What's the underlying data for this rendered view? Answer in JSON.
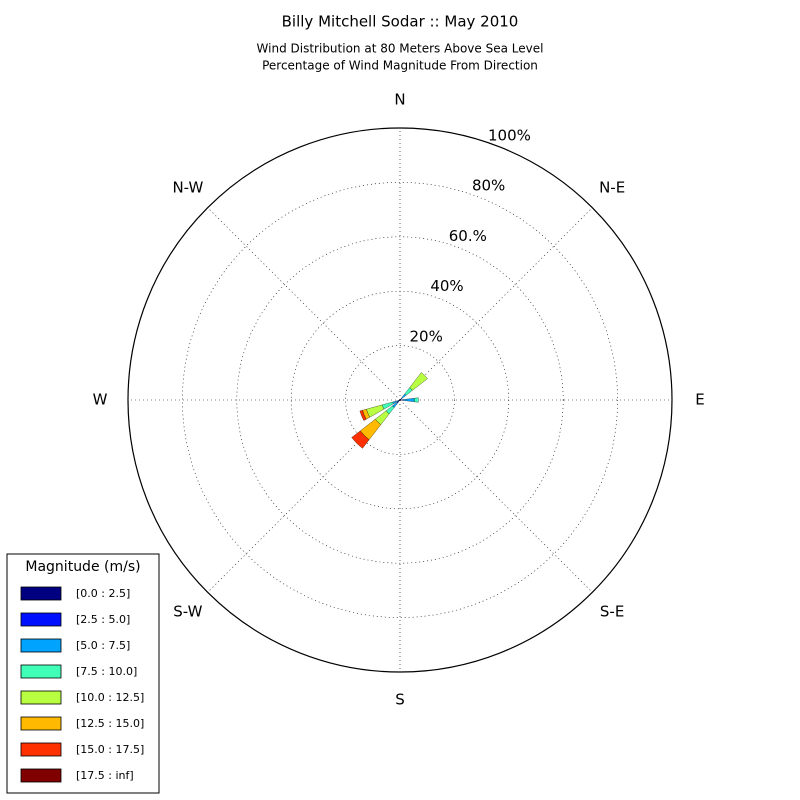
{
  "chart_data": {
    "type": "windrose",
    "title": "Billy Mitchell Sodar :: May 2010",
    "subtitle": [
      "Wind Distribution at 80 Meters Above Sea Level",
      "Percentage of Wind Magnitude From Direction"
    ],
    "categories": [
      "N",
      null,
      "N-E",
      null,
      "E",
      null,
      "S-E",
      null,
      "S",
      null,
      "S-W",
      null,
      "W",
      null,
      "N-W",
      null
    ],
    "rlim": [
      0,
      100
    ],
    "rticks": [
      {
        "value": 20,
        "label": "20%"
      },
      {
        "value": 40,
        "label": "40%"
      },
      {
        "value": 60,
        "label": "60.%"
      },
      {
        "value": 80,
        "label": "80%"
      },
      {
        "value": 100,
        "label": "100%"
      }
    ],
    "legend_title": "Magnitude (m/s)",
    "series": [
      {
        "name": "[0.0 : 2.5]",
        "color": "#000080",
        "values": [
          0,
          0,
          0.3,
          0,
          0.3,
          0,
          0,
          0,
          0,
          0,
          0.5,
          0.3,
          0,
          0,
          0,
          0
        ]
      },
      {
        "name": "[2.5 : 5.0]",
        "color": "#0010ff",
        "values": [
          0,
          0,
          0.5,
          0,
          1,
          0,
          0,
          0,
          0,
          0,
          1,
          0.5,
          0,
          0,
          0,
          0
        ]
      },
      {
        "name": "[5.0 : 7.5]",
        "color": "#00a4ff",
        "values": [
          0,
          0,
          2,
          0,
          4,
          0,
          0,
          0,
          0,
          0,
          2,
          2,
          0,
          0,
          0,
          0
        ]
      },
      {
        "name": "[7.5 : 10.0]",
        "color": "#40ffb7",
        "values": [
          0,
          0,
          3,
          0,
          1.5,
          0,
          0,
          0,
          0,
          0,
          3,
          4,
          0,
          0,
          0,
          0
        ]
      },
      {
        "name": "[10.0 : 12.5]",
        "color": "#b7ff40",
        "values": [
          0,
          0,
          7,
          0,
          0,
          0,
          0,
          0,
          0,
          0,
          5,
          6,
          0,
          0,
          0,
          0
        ]
      },
      {
        "name": "[12.5 : 15.0]",
        "color": "#ffb900",
        "values": [
          0,
          0,
          0,
          0,
          0,
          0,
          0,
          0,
          0,
          0,
          7,
          1.5,
          0,
          0,
          0,
          0
        ]
      },
      {
        "name": "[15.0 : 17.5]",
        "color": "#ff3000",
        "values": [
          0,
          0,
          0,
          0,
          0,
          0,
          0,
          0,
          0,
          0,
          4,
          1,
          0,
          0,
          0,
          0
        ]
      },
      {
        "name": "[17.5 : inf]",
        "color": "#800000",
        "values": [
          0,
          0,
          0,
          0,
          0,
          0,
          0,
          0,
          0,
          0,
          0,
          0,
          0,
          0,
          0,
          0
        ]
      }
    ]
  }
}
